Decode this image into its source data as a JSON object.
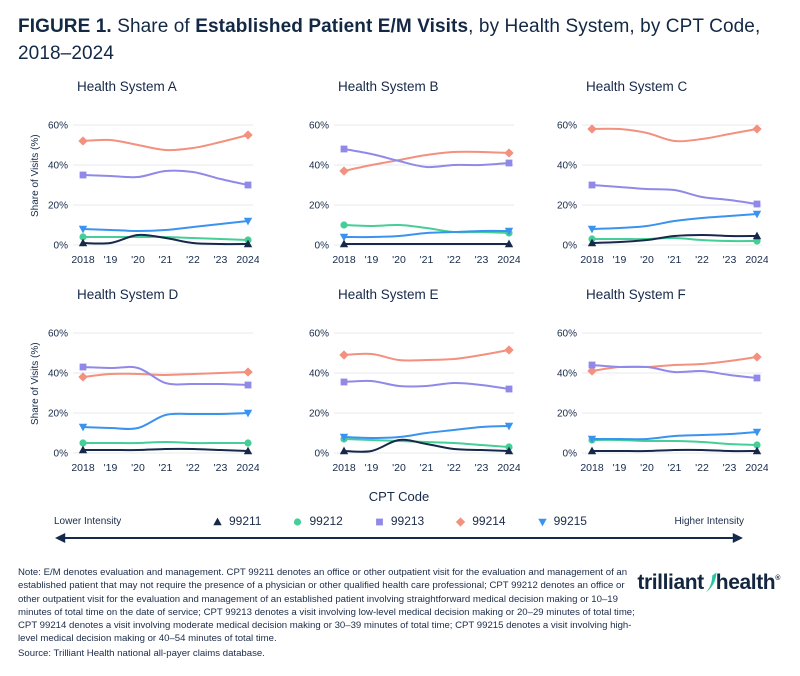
{
  "page_title": {
    "figure_label": "FIGURE 1. ",
    "pre": "Share of ",
    "emph": "Established Patient E/M Visits",
    "post": ", by Health System, by CPT Code, 2018–2024"
  },
  "colors": {
    "navy": "#16294A",
    "green": "#45CE97",
    "purple": "#9089E8",
    "salmon": "#F3907E",
    "blue": "#3B93F0",
    "grid": "#E7E8EC",
    "teal": "#2BC4A2"
  },
  "axis": {
    "ylabel": "Share of Visits (%)",
    "yticks": [
      {
        "value": 60,
        "label": "60%"
      },
      {
        "value": 40,
        "label": "40%"
      },
      {
        "value": 20,
        "label": "20%"
      },
      {
        "value": 0,
        "label": "0%"
      }
    ],
    "xticks": [
      "2018",
      "'19",
      "'20",
      "'21",
      "'22",
      "'23",
      "2024"
    ],
    "ylim": [
      0,
      65
    ],
    "grid": true
  },
  "legend": {
    "title": "CPT Code",
    "lower_label": "Lower Intensity",
    "higher_label": "Higher Intensity",
    "draw_order": [
      "99214",
      "99213",
      "99212",
      "99215",
      "99211"
    ],
    "items": [
      {
        "code": "99211",
        "marker": "triangle-up",
        "color": "#16294A"
      },
      {
        "code": "99212",
        "marker": "circle",
        "color": "#45CE97"
      },
      {
        "code": "99213",
        "marker": "square",
        "color": "#9089E8"
      },
      {
        "code": "99214",
        "marker": "diamond",
        "color": "#F3907E"
      },
      {
        "code": "99215",
        "marker": "triangle-down",
        "color": "#3B93F0"
      }
    ]
  },
  "footer": {
    "note": "Note: E/M denotes evaluation and management. CPT 99211 denotes an office or other outpatient visit for the evaluation and management of an established patient that may not require the presence of a physician or other qualified health care professional; CPT 99212 denotes an office or other outpatient visit for the evaluation and management of an established patient involving straightforward medical decision making or 10–19 minutes of total time on the date of service; CPT 99213 denotes a visit involving low-level medical decision making or 20–29 minutes of total time; CPT 99214 denotes a visit involving moderate medical decision making or 30–39 minutes of total time; CPT 99215 denotes a visit involving high-level medical decision making or 40–54 minutes of total time.",
    "source": "Source: Trilliant Health national all-payer claims database.",
    "logo_first": "trilliant",
    "logo_second": "health",
    "logo_mark": "®"
  },
  "chart_data": [
    {
      "type": "line",
      "title": "Health System A",
      "x": [
        2018,
        2019,
        2020,
        2021,
        2022,
        2023,
        2024
      ],
      "ylabel": "Share of Visits (%)",
      "ylim": [
        0,
        65
      ],
      "series": [
        {
          "name": "99211",
          "values": [
            1,
            1,
            5,
            3.5,
            1,
            0.5,
            0.5
          ]
        },
        {
          "name": "99212",
          "values": [
            4,
            4,
            4,
            4,
            3.5,
            3,
            2.5
          ]
        },
        {
          "name": "99213",
          "values": [
            35,
            34.5,
            34,
            37,
            36.5,
            33,
            30
          ]
        },
        {
          "name": "99214",
          "values": [
            52,
            52.5,
            50,
            47.5,
            48.5,
            51.5,
            55
          ]
        },
        {
          "name": "99215",
          "values": [
            8,
            7.5,
            7,
            7.5,
            9,
            10.5,
            12
          ]
        }
      ]
    },
    {
      "type": "line",
      "title": "Health System B",
      "x": [
        2018,
        2019,
        2020,
        2021,
        2022,
        2023,
        2024
      ],
      "ylabel": "Share of Visits (%)",
      "ylim": [
        0,
        65
      ],
      "series": [
        {
          "name": "99211",
          "values": [
            0.5,
            0.5,
            0.5,
            0.5,
            0.5,
            0.5,
            0.5
          ]
        },
        {
          "name": "99212",
          "values": [
            10,
            9.5,
            10,
            8.5,
            6.5,
            6.5,
            6
          ]
        },
        {
          "name": "99213",
          "values": [
            48,
            45.5,
            42,
            39,
            40,
            40,
            41
          ]
        },
        {
          "name": "99214",
          "values": [
            37,
            40,
            42.5,
            45,
            46.5,
            46.5,
            46
          ]
        },
        {
          "name": "99215",
          "values": [
            4,
            4,
            4.5,
            6,
            6.5,
            7,
            7
          ]
        }
      ]
    },
    {
      "type": "line",
      "title": "Health System C",
      "x": [
        2018,
        2019,
        2020,
        2021,
        2022,
        2023,
        2024
      ],
      "ylabel": "Share of Visits (%)",
      "ylim": [
        0,
        65
      ],
      "series": [
        {
          "name": "99211",
          "values": [
            1,
            1.5,
            2.5,
            4.5,
            5,
            4.5,
            4.5
          ]
        },
        {
          "name": "99212",
          "values": [
            3,
            3,
            3,
            3.5,
            2.5,
            2,
            2
          ]
        },
        {
          "name": "99213",
          "values": [
            30,
            29,
            28,
            27.5,
            24,
            22.5,
            20.5
          ]
        },
        {
          "name": "99214",
          "values": [
            58,
            58,
            56,
            52,
            53,
            55.5,
            58
          ]
        },
        {
          "name": "99215",
          "values": [
            8,
            8.5,
            9.5,
            12,
            13.5,
            14.5,
            15.5
          ]
        }
      ]
    },
    {
      "type": "line",
      "title": "Health System D",
      "x": [
        2018,
        2019,
        2020,
        2021,
        2022,
        2023,
        2024
      ],
      "ylabel": "Share of Visits (%)",
      "ylim": [
        0,
        65
      ],
      "series": [
        {
          "name": "99211",
          "values": [
            1.5,
            1.5,
            1.5,
            2,
            2,
            1.5,
            1
          ]
        },
        {
          "name": "99212",
          "values": [
            5,
            5,
            5,
            5.5,
            5,
            5,
            5
          ]
        },
        {
          "name": "99213",
          "values": [
            43,
            42.5,
            42.5,
            35,
            34.5,
            34.5,
            34
          ]
        },
        {
          "name": "99214",
          "values": [
            38,
            39.5,
            39.5,
            39,
            39.5,
            40,
            40.5
          ]
        },
        {
          "name": "99215",
          "values": [
            13,
            12.5,
            12.5,
            19,
            19.5,
            19.5,
            20
          ]
        }
      ]
    },
    {
      "type": "line",
      "title": "Health System E",
      "x": [
        2018,
        2019,
        2020,
        2021,
        2022,
        2023,
        2024
      ],
      "ylabel": "Share of Visits (%)",
      "ylim": [
        0,
        65
      ],
      "series": [
        {
          "name": "99211",
          "values": [
            1,
            1,
            6.5,
            4.5,
            2,
            1.5,
            1
          ]
        },
        {
          "name": "99212",
          "values": [
            7,
            6.5,
            6,
            5.5,
            5,
            4,
            3
          ]
        },
        {
          "name": "99213",
          "values": [
            35.5,
            36,
            33.5,
            33.5,
            35,
            34,
            32
          ]
        },
        {
          "name": "99214",
          "values": [
            49,
            49.5,
            46.5,
            46.5,
            47,
            49,
            51.5
          ]
        },
        {
          "name": "99215",
          "values": [
            8,
            7.5,
            8,
            10,
            11.5,
            13,
            13.5
          ]
        }
      ]
    },
    {
      "type": "line",
      "title": "Health System F",
      "x": [
        2018,
        2019,
        2020,
        2021,
        2022,
        2023,
        2024
      ],
      "ylabel": "Share of Visits (%)",
      "ylim": [
        0,
        65
      ],
      "series": [
        {
          "name": "99211",
          "values": [
            1,
            1,
            1,
            1.5,
            1.5,
            1,
            1
          ]
        },
        {
          "name": "99212",
          "values": [
            6.5,
            6.5,
            6,
            6,
            5.5,
            4.5,
            4
          ]
        },
        {
          "name": "99213",
          "values": [
            44,
            43,
            43,
            40.5,
            41,
            39,
            37.5
          ]
        },
        {
          "name": "99214",
          "values": [
            41,
            43,
            43,
            44,
            44.5,
            46,
            48
          ]
        },
        {
          "name": "99215",
          "values": [
            7,
            7,
            7,
            8.5,
            9,
            9.5,
            10.5
          ]
        }
      ]
    }
  ]
}
